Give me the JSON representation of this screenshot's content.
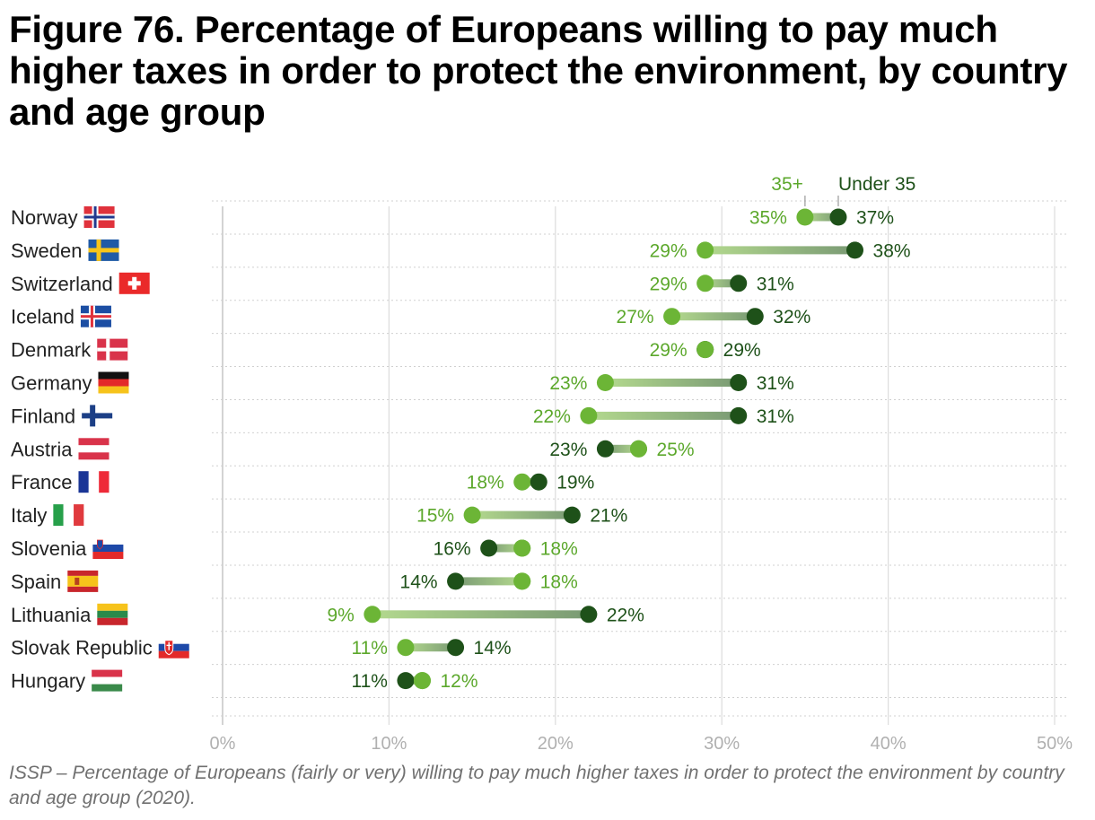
{
  "title": "Figure 76. Percentage of Europeans willing to pay much higher taxes in order to protect the environment, by country and age group",
  "caption": "ISSP – Percentage of Europeans (fairly or very) willing to pay much higher taxes in order to protect the environment by country and age group (2020).",
  "colors": {
    "over35": "#6cb536",
    "under35": "#1e5119",
    "over35_text": "#5ca82c",
    "under35_text": "#1e5119",
    "grid": "#dcdcdc",
    "axis_text": "#b0b0b0",
    "label_text": "#222222"
  },
  "chart_data": {
    "type": "dumbbell",
    "title": "Figure 76. Percentage of Europeans willing to pay much higher taxes in order to protect the environment, by country and age group",
    "xlim": [
      0,
      50
    ],
    "xticks": [
      0,
      10,
      20,
      30,
      40,
      50
    ],
    "tick_labels": [
      "0%",
      "10%",
      "20%",
      "30%",
      "40%",
      "50%"
    ],
    "xlabel": "",
    "ylabel": "",
    "legend": {
      "over35": "35+",
      "under35": "Under 35",
      "placement": "top-right"
    },
    "value_suffix": "%",
    "categories": [
      "Norway",
      "Sweden",
      "Switzerland",
      "Iceland",
      "Denmark",
      "Germany",
      "Finland",
      "Austria",
      "France",
      "Italy",
      "Slovenia",
      "Spain",
      "Lithuania",
      "Slovak Republic",
      "Hungary"
    ],
    "series": [
      {
        "name": "35+",
        "values": [
          35,
          29,
          29,
          27,
          29,
          23,
          22,
          25,
          18,
          15,
          18,
          18,
          9,
          11,
          12
        ]
      },
      {
        "name": "Under 35",
        "values": [
          37,
          38,
          31,
          32,
          29,
          31,
          31,
          23,
          19,
          21,
          16,
          14,
          22,
          14,
          11
        ]
      }
    ],
    "flags": [
      "norway-flag-icon",
      "sweden-flag-icon",
      "switzerland-flag-icon",
      "iceland-flag-icon",
      "denmark-flag-icon",
      "germany-flag-icon",
      "finland-flag-icon",
      "austria-flag-icon",
      "france-flag-icon",
      "italy-flag-icon",
      "slovenia-flag-icon",
      "spain-flag-icon",
      "lithuania-flag-icon",
      "slovak-republic-flag-icon",
      "hungary-flag-icon"
    ]
  }
}
